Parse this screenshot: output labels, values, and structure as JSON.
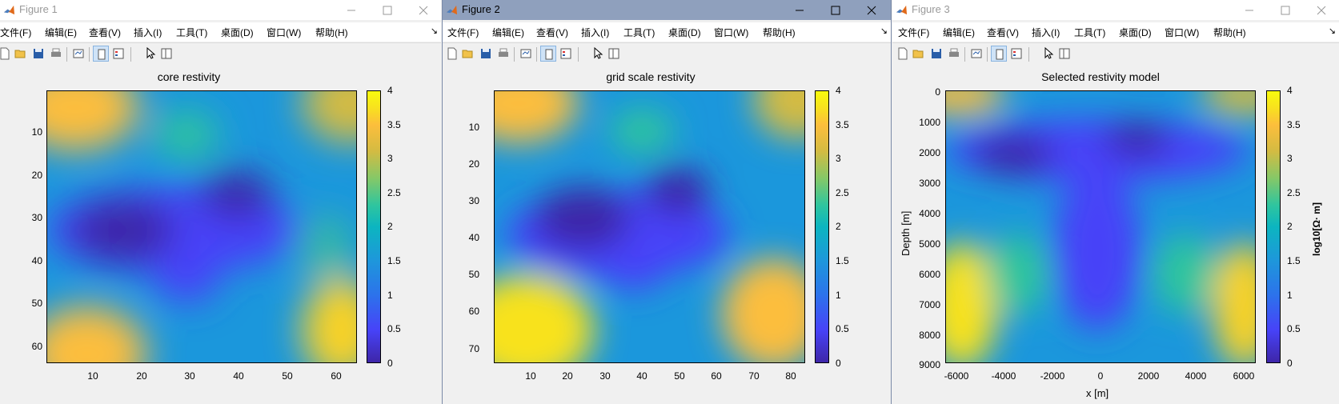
{
  "colors": {
    "title_active_bg": "#8fa0bd",
    "parula": [
      "#3e26a8",
      "#4743f8",
      "#2c73eb",
      "#1e97db",
      "#0cb5c0",
      "#2fc59e",
      "#86c867",
      "#d4bb42",
      "#fcbe3c",
      "#f8e21e",
      "#f9fb0e"
    ]
  },
  "menu_labels": [
    "文件(F)",
    "编辑(E)",
    "查看(V)",
    "插入(I)",
    "工具(T)",
    "桌面(D)",
    "窗口(W)",
    "帮助(H)"
  ],
  "windows": [
    {
      "window_title": "Figure 1",
      "active": false,
      "plot": {
        "title": "core restivity",
        "y_ticks": [
          "10",
          "20",
          "30",
          "40",
          "50",
          "60"
        ],
        "x_ticks": [
          "10",
          "20",
          "30",
          "40",
          "50",
          "60"
        ],
        "xlabel": "",
        "ylabel": "",
        "colorbar_ticks": [
          "0",
          "0.5",
          "1",
          "1.5",
          "2",
          "2.5",
          "3",
          "3.5",
          "4"
        ],
        "colorbar_label": ""
      }
    },
    {
      "window_title": "Figure 2",
      "active": true,
      "plot": {
        "title": "grid scale restivity",
        "y_ticks": [
          "10",
          "20",
          "30",
          "40",
          "50",
          "60",
          "70"
        ],
        "x_ticks": [
          "10",
          "20",
          "30",
          "40",
          "50",
          "60",
          "70",
          "80"
        ],
        "xlabel": "",
        "ylabel": "",
        "colorbar_ticks": [
          "0",
          "0.5",
          "1",
          "1.5",
          "2",
          "2.5",
          "3",
          "3.5",
          "4"
        ],
        "colorbar_label": ""
      }
    },
    {
      "window_title": "Figure 3",
      "active": false,
      "plot": {
        "title": "Selected restivity model",
        "y_ticks": [
          "0",
          "1000",
          "2000",
          "3000",
          "4000",
          "5000",
          "6000",
          "7000",
          "8000",
          "9000"
        ],
        "x_ticks": [
          "-6000",
          "-4000",
          "-2000",
          "0",
          "2000",
          "4000",
          "6000"
        ],
        "xlabel": "x [m]",
        "ylabel": "Depth [m]",
        "colorbar_ticks": [
          "0",
          "0.5",
          "1",
          "1.5",
          "2",
          "2.5",
          "3",
          "3.5",
          "4"
        ],
        "colorbar_label": "log10[Ω· m]"
      }
    }
  ],
  "chart_data": [
    {
      "type": "heatmap",
      "title": "core restivity",
      "x_range": [
        1,
        64
      ],
      "y_range": [
        1,
        64
      ],
      "y_reversed": true,
      "clim": [
        0,
        4
      ],
      "colorbar": true,
      "features": [
        {
          "x": 1,
          "y": 1,
          "value": 3.5
        },
        {
          "x": 64,
          "y": 1,
          "value": 3.2
        },
        {
          "x": 1,
          "y": 64,
          "value": 3.9
        },
        {
          "x": 64,
          "y": 58,
          "value": 3.6
        },
        {
          "x": 14,
          "y": 34,
          "value": 0.2
        },
        {
          "x": 40,
          "y": 27,
          "value": 0.2
        },
        {
          "x": 29,
          "y": 45,
          "value": 0.4
        },
        {
          "x": 32,
          "y": 12,
          "value": 1.9
        },
        {
          "x": 56,
          "y": 38,
          "value": 1.9
        }
      ]
    },
    {
      "type": "heatmap",
      "title": "grid scale restivity",
      "x_range": [
        1,
        84
      ],
      "y_range": [
        1,
        74
      ],
      "y_reversed": true,
      "clim": [
        0,
        4
      ],
      "colorbar": true,
      "features": [
        {
          "x": 1,
          "y": 1,
          "value": 3.5
        },
        {
          "x": 84,
          "y": 1,
          "value": 3.3
        },
        {
          "x": 6,
          "y": 64,
          "value": 4.0
        },
        {
          "x": 78,
          "y": 60,
          "value": 3.8
        },
        {
          "x": 26,
          "y": 32,
          "value": 0.2
        },
        {
          "x": 49,
          "y": 26,
          "value": 0.2
        },
        {
          "x": 40,
          "y": 48,
          "value": 0.4
        },
        {
          "x": 42,
          "y": 9,
          "value": 1.9
        },
        {
          "x": 72,
          "y": 44,
          "value": 1.9
        }
      ]
    },
    {
      "type": "heatmap",
      "title": "Selected restivity model",
      "xlabel": "x [m]",
      "ylabel": "Depth [m]",
      "x_range": [
        -6500,
        6500
      ],
      "y_range": [
        0,
        9000
      ],
      "y_reversed": true,
      "clim": [
        0,
        4
      ],
      "colorbar": true,
      "colorbar_label": "log10[Ω· m]",
      "features": [
        {
          "x": -6200,
          "y": 200,
          "value": 3.4
        },
        {
          "x": 6200,
          "y": 200,
          "value": 3.0
        },
        {
          "x": -5800,
          "y": 7500,
          "value": 3.9
        },
        {
          "x": 6000,
          "y": 7400,
          "value": 3.8
        },
        {
          "x": -3800,
          "y": 2200,
          "value": 0.3
        },
        {
          "x": 1500,
          "y": 1500,
          "value": 0.2
        },
        {
          "x": 0,
          "y": 4500,
          "value": 0.7
        },
        {
          "x": -3500,
          "y": 6000,
          "value": 1.9
        },
        {
          "x": 3500,
          "y": 6000,
          "value": 1.9
        }
      ]
    }
  ]
}
